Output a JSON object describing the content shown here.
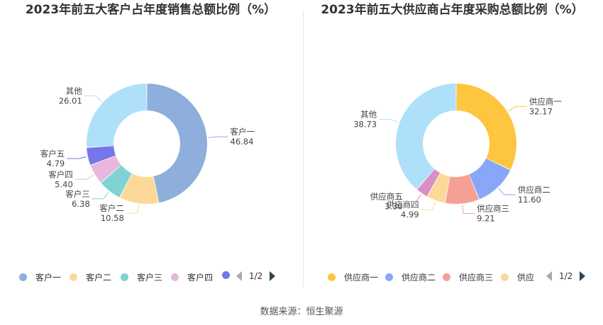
{
  "source": "数据来源：恒生聚源",
  "chart_data": [
    {
      "type": "pie",
      "title": "2023年前五大客户占年度销售总额比例（%）",
      "categories": [
        "客户一",
        "客户二",
        "客户三",
        "客户四",
        "客户五",
        "其他"
      ],
      "values": [
        46.84,
        10.58,
        6.38,
        5.4,
        4.79,
        26.01
      ],
      "value_labels": [
        "46.84",
        "10.58",
        "6.38",
        "5.40",
        "4.79",
        "26.01"
      ],
      "colors": [
        "#8eaedb",
        "#fdd999",
        "#7fd3d5",
        "#e7b8dc",
        "#7775ea",
        "#aee0f9"
      ],
      "legend": {
        "items": [
          "客户一",
          "客户二",
          "客户三",
          "客户四",
          ""
        ],
        "page": "1/2",
        "placement": "bottom"
      }
    },
    {
      "type": "pie",
      "title": "2023年前五大供应商占年度采购总额比例（%）",
      "categories": [
        "供应商一",
        "供应商二",
        "供应商三",
        "供应商四",
        "供应商五",
        "其他"
      ],
      "values": [
        32.17,
        11.6,
        9.21,
        4.99,
        3.3,
        38.73
      ],
      "value_labels": [
        "32.17",
        "11.60",
        "9.21",
        "4.99",
        "3.30",
        "38.73"
      ],
      "colors": [
        "#fec53e",
        "#89a7f8",
        "#f6a095",
        "#fdd999",
        "#d98fc8",
        "#aee0f9"
      ],
      "legend": {
        "items": [
          "供应商一",
          "供应商二",
          "供应商三",
          "供应"
        ],
        "page": "1/2",
        "placement": "bottom"
      }
    }
  ]
}
